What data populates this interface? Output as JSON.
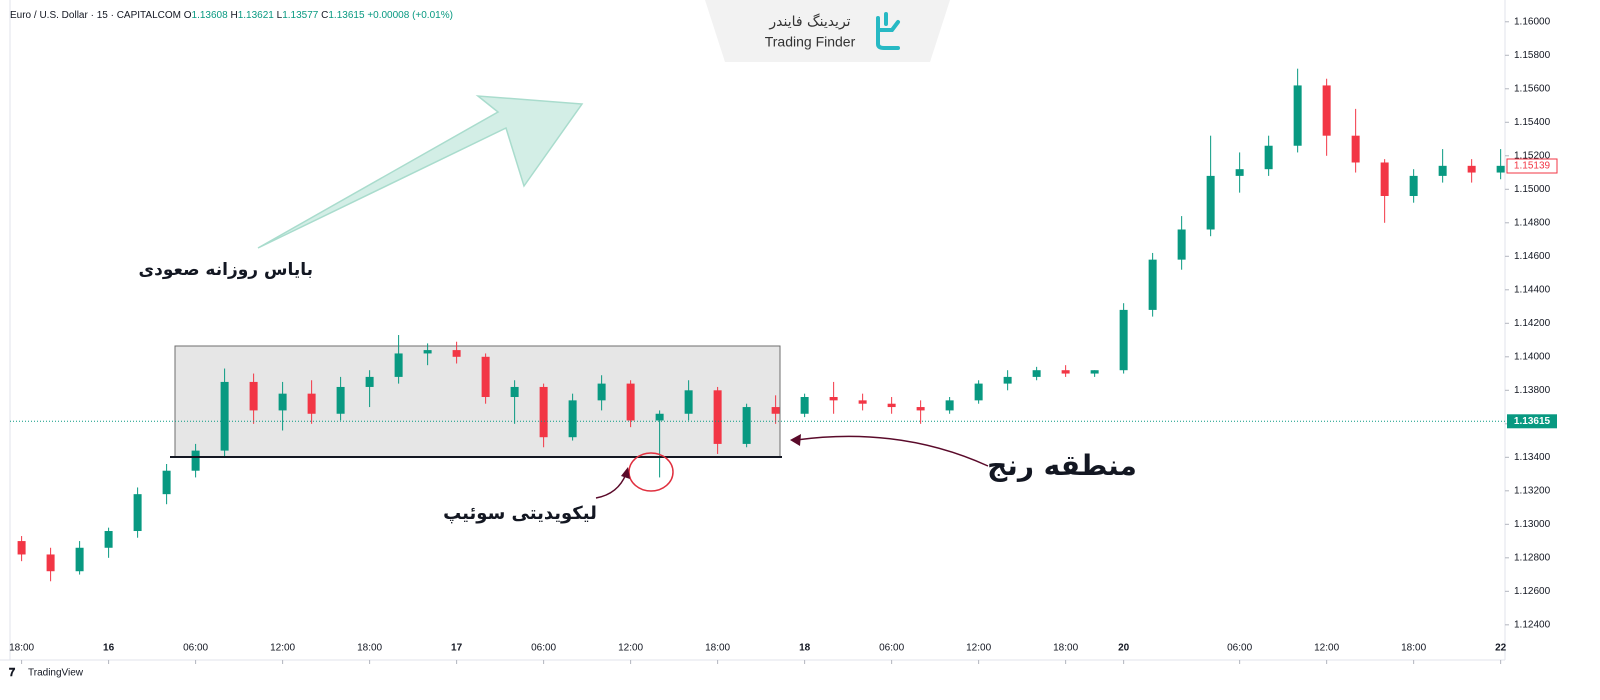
{
  "chart_data": {
    "type": "candlestick",
    "header": {
      "symbol": "Euro / U.S. Dollar · 15 · CAPITALCOM",
      "open_label": "O",
      "open": 1.13608,
      "high_label": "H",
      "high": 1.13621,
      "low_label": "L",
      "low": 1.13577,
      "close_label": "C",
      "close": 1.13615,
      "change": "+0.00008 (+0.01%)"
    },
    "logo": {
      "fa": "تریدینگ فایندر",
      "en": "Trading Finder"
    },
    "source": "TradingView",
    "annotations": {
      "bias": "بایاس روزانه صعودی",
      "range": "منطقه رنج",
      "sweep": "لیکویدیتی سوئیپ"
    },
    "up_color": "#089981",
    "down_color": "#f23645",
    "last_price": 1.13615,
    "marked_price": 1.15139,
    "x": [
      0,
      2,
      4,
      6,
      8,
      10,
      12,
      14,
      16,
      18,
      20,
      22,
      24,
      26,
      28,
      30,
      32,
      34,
      36,
      38,
      40,
      42,
      44,
      46,
      48,
      50,
      52,
      54,
      56,
      58,
      60,
      62,
      64,
      66,
      68,
      70,
      72,
      74,
      76,
      78,
      80,
      82,
      84,
      86,
      88,
      90,
      92,
      94,
      96,
      98,
      100,
      102
    ],
    "open": [
      1.129,
      1.1282,
      1.1272,
      1.1286,
      1.1296,
      1.1318,
      1.1332,
      1.1344,
      1.1385,
      1.1368,
      1.1378,
      1.1366,
      1.1382,
      1.1388,
      1.1402,
      1.1404,
      1.14,
      1.1376,
      1.1382,
      1.1352,
      1.1374,
      1.1384,
      1.1362,
      1.1366,
      1.138,
      1.1348,
      1.137,
      1.1366,
      1.1376,
      1.1374,
      1.1372,
      1.137,
      1.1368,
      1.1374,
      1.1384,
      1.1388,
      1.1392,
      1.139,
      1.1392,
      1.1428,
      1.1458,
      1.1476,
      1.1508,
      1.1512,
      1.1526,
      1.1562,
      1.1532,
      1.1516,
      1.1496,
      1.1508,
      1.1514,
      1.151
    ],
    "high": [
      1.1293,
      1.1286,
      1.129,
      1.1298,
      1.1322,
      1.1336,
      1.1348,
      1.1393,
      1.139,
      1.1385,
      1.1386,
      1.1388,
      1.1392,
      1.1413,
      1.1408,
      1.1409,
      1.1402,
      1.1386,
      1.1384,
      1.1378,
      1.1389,
      1.1386,
      1.1368,
      1.1386,
      1.1382,
      1.1372,
      1.1377,
      1.1378,
      1.1385,
      1.1378,
      1.1376,
      1.1374,
      1.1376,
      1.1386,
      1.1392,
      1.1394,
      1.1395,
      1.1392,
      1.1432,
      1.1462,
      1.1484,
      1.1532,
      1.1522,
      1.1532,
      1.1572,
      1.1566,
      1.1548,
      1.1518,
      1.1512,
      1.1524,
      1.1518,
      1.1524
    ],
    "low": [
      1.1278,
      1.1266,
      1.127,
      1.128,
      1.1292,
      1.1312,
      1.1328,
      1.134,
      1.136,
      1.1356,
      1.136,
      1.1362,
      1.137,
      1.1384,
      1.1395,
      1.1396,
      1.1372,
      1.136,
      1.1346,
      1.135,
      1.1368,
      1.1358,
      1.1328,
      1.1362,
      1.1342,
      1.1346,
      1.136,
      1.1364,
      1.1366,
      1.1368,
      1.1366,
      1.136,
      1.1366,
      1.1372,
      1.138,
      1.1386,
      1.1388,
      1.1388,
      1.139,
      1.1424,
      1.1452,
      1.1472,
      1.1498,
      1.1508,
      1.1522,
      1.152,
      1.151,
      1.148,
      1.1492,
      1.1504,
      1.1504,
      1.1506
    ],
    "close": [
      1.1282,
      1.1272,
      1.1286,
      1.1296,
      1.1318,
      1.1332,
      1.1344,
      1.1385,
      1.1368,
      1.1378,
      1.1366,
      1.1382,
      1.1388,
      1.1402,
      1.1404,
      1.14,
      1.1376,
      1.1382,
      1.1352,
      1.1374,
      1.1384,
      1.1362,
      1.1366,
      1.138,
      1.1348,
      1.137,
      1.1366,
      1.1376,
      1.1374,
      1.1372,
      1.137,
      1.1368,
      1.1374,
      1.1384,
      1.1388,
      1.1392,
      1.139,
      1.1392,
      1.1428,
      1.1458,
      1.1476,
      1.1508,
      1.1512,
      1.1526,
      1.1562,
      1.1532,
      1.1516,
      1.1496,
      1.1508,
      1.1514,
      1.151,
      1.1514
    ],
    "xlim": [
      -0.8,
      102.3
    ],
    "xticks": [
      {
        "value": 0,
        "label": "18:00"
      },
      {
        "value": 6,
        "label": "16"
      },
      {
        "value": 12,
        "label": "06:00"
      },
      {
        "value": 18,
        "label": "12:00"
      },
      {
        "value": 24,
        "label": "18:00"
      },
      {
        "value": 30,
        "label": "17"
      },
      {
        "value": 36,
        "label": "06:00"
      },
      {
        "value": 42,
        "label": "12:00"
      },
      {
        "value": 48,
        "label": "18:00"
      },
      {
        "value": 54,
        "label": "18"
      },
      {
        "value": 60,
        "label": "06:00"
      },
      {
        "value": 66,
        "label": "12:00"
      },
      {
        "value": 72,
        "label": "18:00"
      },
      {
        "value": 76,
        "label": "20"
      },
      {
        "value": 84,
        "label": "06:00"
      },
      {
        "value": 90,
        "label": "12:00"
      },
      {
        "value": 96,
        "label": "18:00"
      },
      {
        "value": 102,
        "label": "22"
      }
    ],
    "ylim": [
      1.1219,
      1.1613
    ],
    "yticks": [
      {
        "value": 1.124,
        "label": "1.12400"
      },
      {
        "value": 1.126,
        "label": "1.12600"
      },
      {
        "value": 1.128,
        "label": "1.12800"
      },
      {
        "value": 1.13,
        "label": "1.13000"
      },
      {
        "value": 1.132,
        "label": "1.13200"
      },
      {
        "value": 1.134,
        "label": "1.13400"
      },
      {
        "value": 1.136,
        "label": "1.13600"
      },
      {
        "value": 1.138,
        "label": "1.13800"
      },
      {
        "value": 1.14,
        "label": "1.14000"
      },
      {
        "value": 1.142,
        "label": "1.14200"
      },
      {
        "value": 1.144,
        "label": "1.14400"
      },
      {
        "value": 1.146,
        "label": "1.14600"
      },
      {
        "value": 1.148,
        "label": "1.14800"
      },
      {
        "value": 1.15,
        "label": "1.15000"
      },
      {
        "value": 1.152,
        "label": "1.15200"
      },
      {
        "value": 1.154,
        "label": "1.15400"
      },
      {
        "value": 1.156,
        "label": "1.15600"
      },
      {
        "value": 1.158,
        "label": "1.15800"
      },
      {
        "value": 1.16,
        "label": "1.16000"
      }
    ]
  }
}
